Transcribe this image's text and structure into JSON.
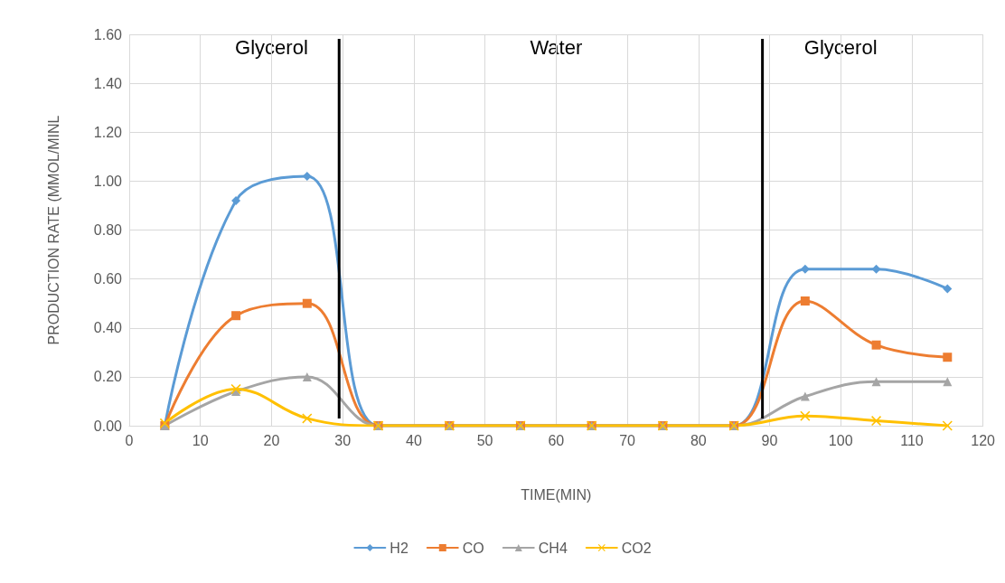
{
  "chart_data": {
    "type": "line",
    "xlabel": "TIME(MIN)",
    "ylabel": "PRODUCTION RATE (MMOL/MINL",
    "x": [
      5,
      15,
      25,
      35,
      45,
      55,
      65,
      75,
      85,
      95,
      105,
      115
    ],
    "series": [
      {
        "name": "H2",
        "color": "#5b9bd5",
        "marker": "diamond",
        "values": [
          0,
          0.92,
          1.02,
          0,
          0,
          0,
          0,
          0,
          0,
          0.64,
          0.64,
          0.56
        ]
      },
      {
        "name": "CO",
        "color": "#ed7d31",
        "marker": "square",
        "values": [
          0,
          0.45,
          0.5,
          0,
          0,
          0,
          0,
          0,
          0,
          0.51,
          0.33,
          0.28
        ]
      },
      {
        "name": "CH4",
        "color": "#a5a5a5",
        "marker": "triangle",
        "values": [
          0,
          0.14,
          0.2,
          0,
          0,
          0,
          0,
          0,
          0,
          0.12,
          0.18,
          0.18
        ]
      },
      {
        "name": "CO2",
        "color": "#ffc000",
        "marker": "cross",
        "values": [
          0.01,
          0.15,
          0.03,
          0,
          0,
          0,
          0,
          0,
          0,
          0.04,
          0.02,
          0
        ]
      }
    ],
    "xlim": [
      0,
      120
    ],
    "xticks": [
      0,
      10,
      20,
      30,
      40,
      50,
      60,
      70,
      80,
      90,
      100,
      110,
      120
    ],
    "ylim": [
      0,
      1.6
    ],
    "yticks": [
      {
        "value": 0,
        "label": "0.00"
      },
      {
        "value": 0.2,
        "label": "0.20"
      },
      {
        "value": 0.4,
        "label": "0.40"
      },
      {
        "value": 0.6,
        "label": "0.60"
      },
      {
        "value": 0.8,
        "label": "0.80"
      },
      {
        "value": 1,
        "label": "1.00"
      },
      {
        "value": 1.2,
        "label": "1.20"
      },
      {
        "value": 1.4,
        "label": "1.40"
      },
      {
        "value": 1.6,
        "label": "1.60"
      }
    ],
    "ref_lines": [
      {
        "axis": "x",
        "value": 29.5,
        "color": "#000000"
      },
      {
        "axis": "x",
        "value": 89,
        "color": "#000000"
      }
    ],
    "annotations": [
      "Glycerol",
      "Water",
      "Glycerol"
    ],
    "grid": true,
    "legend": "bottom",
    "line_style": "solid"
  }
}
